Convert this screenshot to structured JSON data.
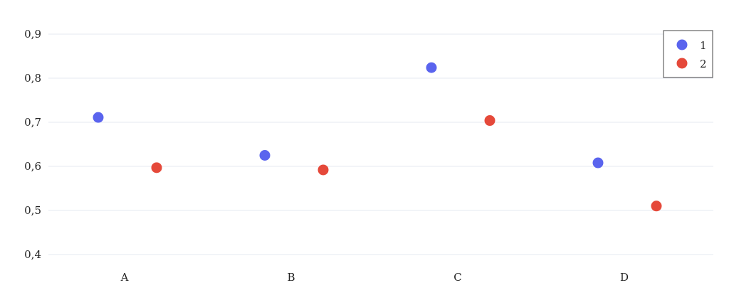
{
  "chart_data": {
    "type": "scatter",
    "categories": [
      "A",
      "B",
      "C",
      "D"
    ],
    "series": [
      {
        "name": "1",
        "color": "#5a64ee",
        "values": [
          0.711,
          0.625,
          0.824,
          0.608
        ]
      },
      {
        "name": "2",
        "color": "#e5493a",
        "values": [
          0.597,
          0.592,
          0.704,
          0.51
        ]
      }
    ],
    "yticks": [
      {
        "value": 0.4,
        "label": "0,4"
      },
      {
        "value": 0.5,
        "label": "0,5"
      },
      {
        "value": 0.6,
        "label": "0,6"
      },
      {
        "value": 0.7,
        "label": "0,7"
      },
      {
        "value": 0.8,
        "label": "0,8"
      },
      {
        "value": 0.9,
        "label": "0,9"
      }
    ],
    "ylim": [
      0.4,
      0.9
    ],
    "title": "",
    "xlabel": "",
    "ylabel": "",
    "grid": true,
    "legend_position": "top-right",
    "grid_color": "#e6e8f2"
  }
}
